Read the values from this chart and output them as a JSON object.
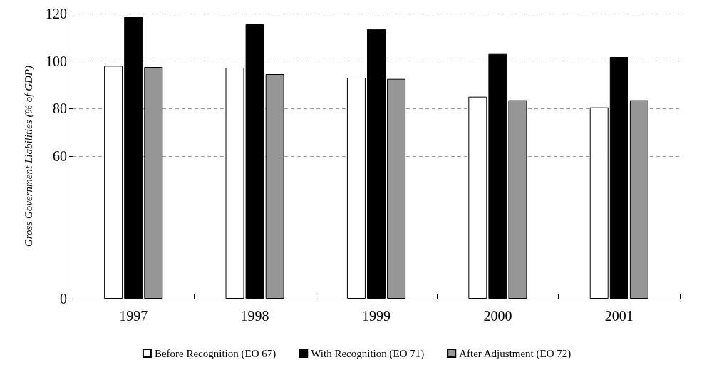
{
  "chart_data": {
    "type": "bar",
    "ylabel": "Gross Government Liabilities (% of GDP)",
    "categories": [
      "1997",
      "1998",
      "1999",
      "2000",
      "2001"
    ],
    "series": [
      {
        "name": "Before Recognition (EO 67)",
        "color": "#ffffff",
        "values": [
          98,
          97.2,
          93,
          85,
          80.5
        ]
      },
      {
        "name": "With Recognition (EO 71)",
        "color": "#000000",
        "values": [
          118.5,
          115.5,
          113.5,
          103,
          101.7
        ]
      },
      {
        "name": "After Adjustment (EO 72)",
        "color": "#969696",
        "values": [
          97.5,
          94.5,
          92.5,
          83.5,
          83.5
        ]
      }
    ],
    "ylim": [
      0,
      120
    ],
    "yticks": [
      0,
      60,
      80,
      100,
      120
    ],
    "grid": "y",
    "legend": "bottom"
  }
}
